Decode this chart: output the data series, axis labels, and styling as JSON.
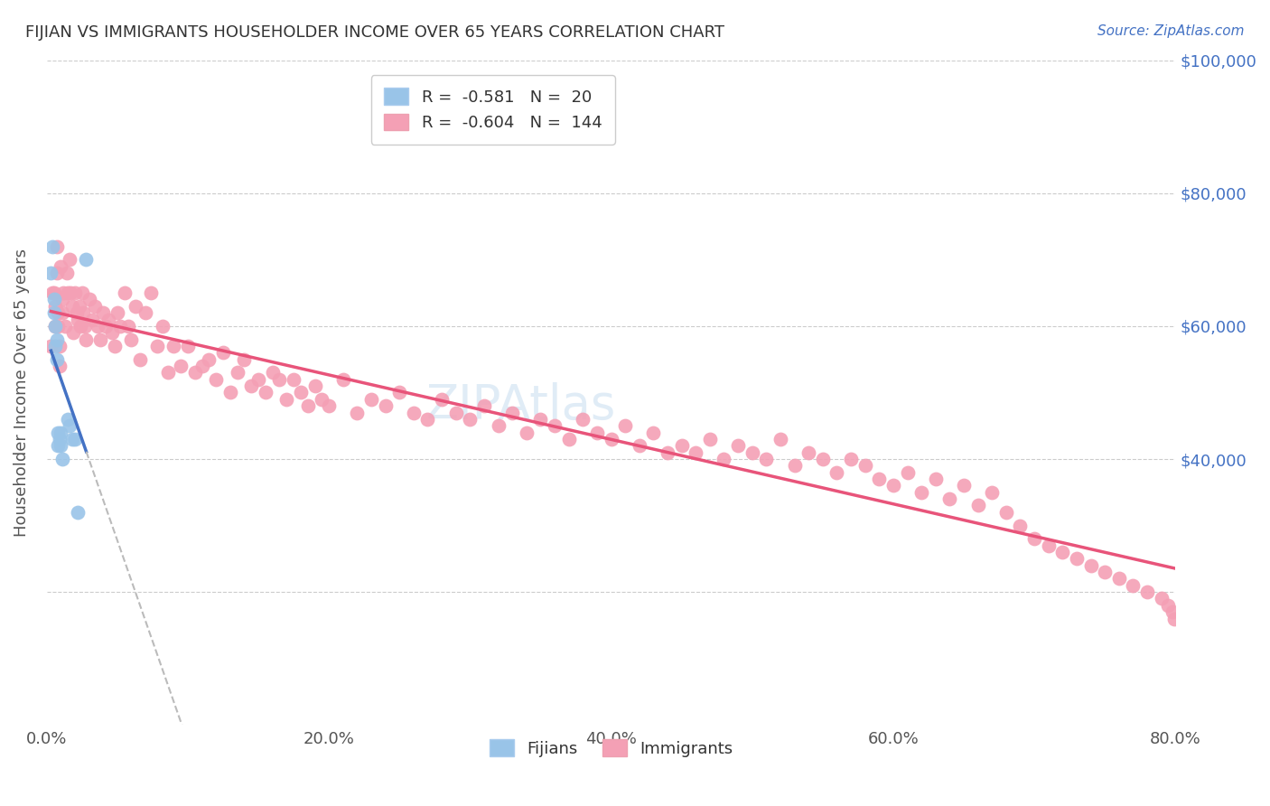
{
  "title": "FIJIAN VS IMMIGRANTS HOUSEHOLDER INCOME OVER 65 YEARS CORRELATION CHART",
  "source": "Source: ZipAtlas.com",
  "ylabel": "Householder Income Over 65 years",
  "xlim": [
    0,
    0.8
  ],
  "ylim": [
    0,
    100000
  ],
  "xtick_labels": [
    "0.0%",
    "20.0%",
    "40.0%",
    "60.0%",
    "80.0%"
  ],
  "xticks": [
    0.0,
    0.2,
    0.4,
    0.6,
    0.8
  ],
  "legend_blue_r": "-0.581",
  "legend_blue_n": "20",
  "legend_pink_r": "-0.604",
  "legend_pink_n": "144",
  "fijian_color": "#99c4e8",
  "immigrant_color": "#f4a0b5",
  "line_blue": "#4472c4",
  "line_pink": "#e8547a",
  "line_ext_color": "#bbbbbb",
  "axis_label_color": "#4472c4",
  "fijians_x": [
    0.003,
    0.004,
    0.005,
    0.005,
    0.006,
    0.006,
    0.007,
    0.007,
    0.008,
    0.008,
    0.009,
    0.01,
    0.01,
    0.011,
    0.015,
    0.016,
    0.018,
    0.02,
    0.022,
    0.028
  ],
  "fijians_y": [
    68000,
    72000,
    64000,
    62000,
    60000,
    57000,
    55000,
    58000,
    42000,
    44000,
    43000,
    44000,
    42000,
    40000,
    46000,
    45000,
    43000,
    43000,
    32000,
    70000
  ],
  "immigrants_x": [
    0.003,
    0.004,
    0.005,
    0.006,
    0.006,
    0.007,
    0.007,
    0.008,
    0.008,
    0.009,
    0.009,
    0.01,
    0.011,
    0.011,
    0.012,
    0.013,
    0.014,
    0.015,
    0.016,
    0.017,
    0.018,
    0.019,
    0.02,
    0.021,
    0.022,
    0.023,
    0.024,
    0.025,
    0.026,
    0.027,
    0.028,
    0.03,
    0.032,
    0.034,
    0.036,
    0.038,
    0.04,
    0.042,
    0.044,
    0.046,
    0.048,
    0.05,
    0.052,
    0.055,
    0.058,
    0.06,
    0.063,
    0.066,
    0.07,
    0.074,
    0.078,
    0.082,
    0.086,
    0.09,
    0.095,
    0.1,
    0.105,
    0.11,
    0.115,
    0.12,
    0.125,
    0.13,
    0.135,
    0.14,
    0.145,
    0.15,
    0.155,
    0.16,
    0.165,
    0.17,
    0.175,
    0.18,
    0.185,
    0.19,
    0.195,
    0.2,
    0.21,
    0.22,
    0.23,
    0.24,
    0.25,
    0.26,
    0.27,
    0.28,
    0.29,
    0.3,
    0.31,
    0.32,
    0.33,
    0.34,
    0.35,
    0.36,
    0.37,
    0.38,
    0.39,
    0.4,
    0.41,
    0.42,
    0.43,
    0.44,
    0.45,
    0.46,
    0.47,
    0.48,
    0.49,
    0.5,
    0.51,
    0.52,
    0.53,
    0.54,
    0.55,
    0.56,
    0.57,
    0.58,
    0.59,
    0.6,
    0.61,
    0.62,
    0.63,
    0.64,
    0.65,
    0.66,
    0.67,
    0.68,
    0.69,
    0.7,
    0.71,
    0.72,
    0.73,
    0.74,
    0.75,
    0.76,
    0.77,
    0.78,
    0.79,
    0.795,
    0.798,
    0.799
  ],
  "immigrants_y": [
    57000,
    65000,
    65000,
    63000,
    60000,
    72000,
    68000,
    62000,
    60000,
    57000,
    54000,
    69000,
    64000,
    62000,
    65000,
    60000,
    68000,
    65000,
    70000,
    65000,
    63000,
    59000,
    65000,
    62000,
    61000,
    63000,
    60000,
    65000,
    62000,
    60000,
    58000,
    64000,
    61000,
    63000,
    60000,
    58000,
    62000,
    60000,
    61000,
    59000,
    57000,
    62000,
    60000,
    65000,
    60000,
    58000,
    63000,
    55000,
    62000,
    65000,
    57000,
    60000,
    53000,
    57000,
    54000,
    57000,
    53000,
    54000,
    55000,
    52000,
    56000,
    50000,
    53000,
    55000,
    51000,
    52000,
    50000,
    53000,
    52000,
    49000,
    52000,
    50000,
    48000,
    51000,
    49000,
    48000,
    52000,
    47000,
    49000,
    48000,
    50000,
    47000,
    46000,
    49000,
    47000,
    46000,
    48000,
    45000,
    47000,
    44000,
    46000,
    45000,
    43000,
    46000,
    44000,
    43000,
    45000,
    42000,
    44000,
    41000,
    42000,
    41000,
    43000,
    40000,
    42000,
    41000,
    40000,
    43000,
    39000,
    41000,
    40000,
    38000,
    40000,
    39000,
    37000,
    36000,
    38000,
    35000,
    37000,
    34000,
    36000,
    33000,
    35000,
    32000,
    30000,
    28000,
    27000,
    26000,
    25000,
    24000,
    23000,
    22000,
    21000,
    20000,
    19000,
    18000,
    17000,
    16000
  ]
}
